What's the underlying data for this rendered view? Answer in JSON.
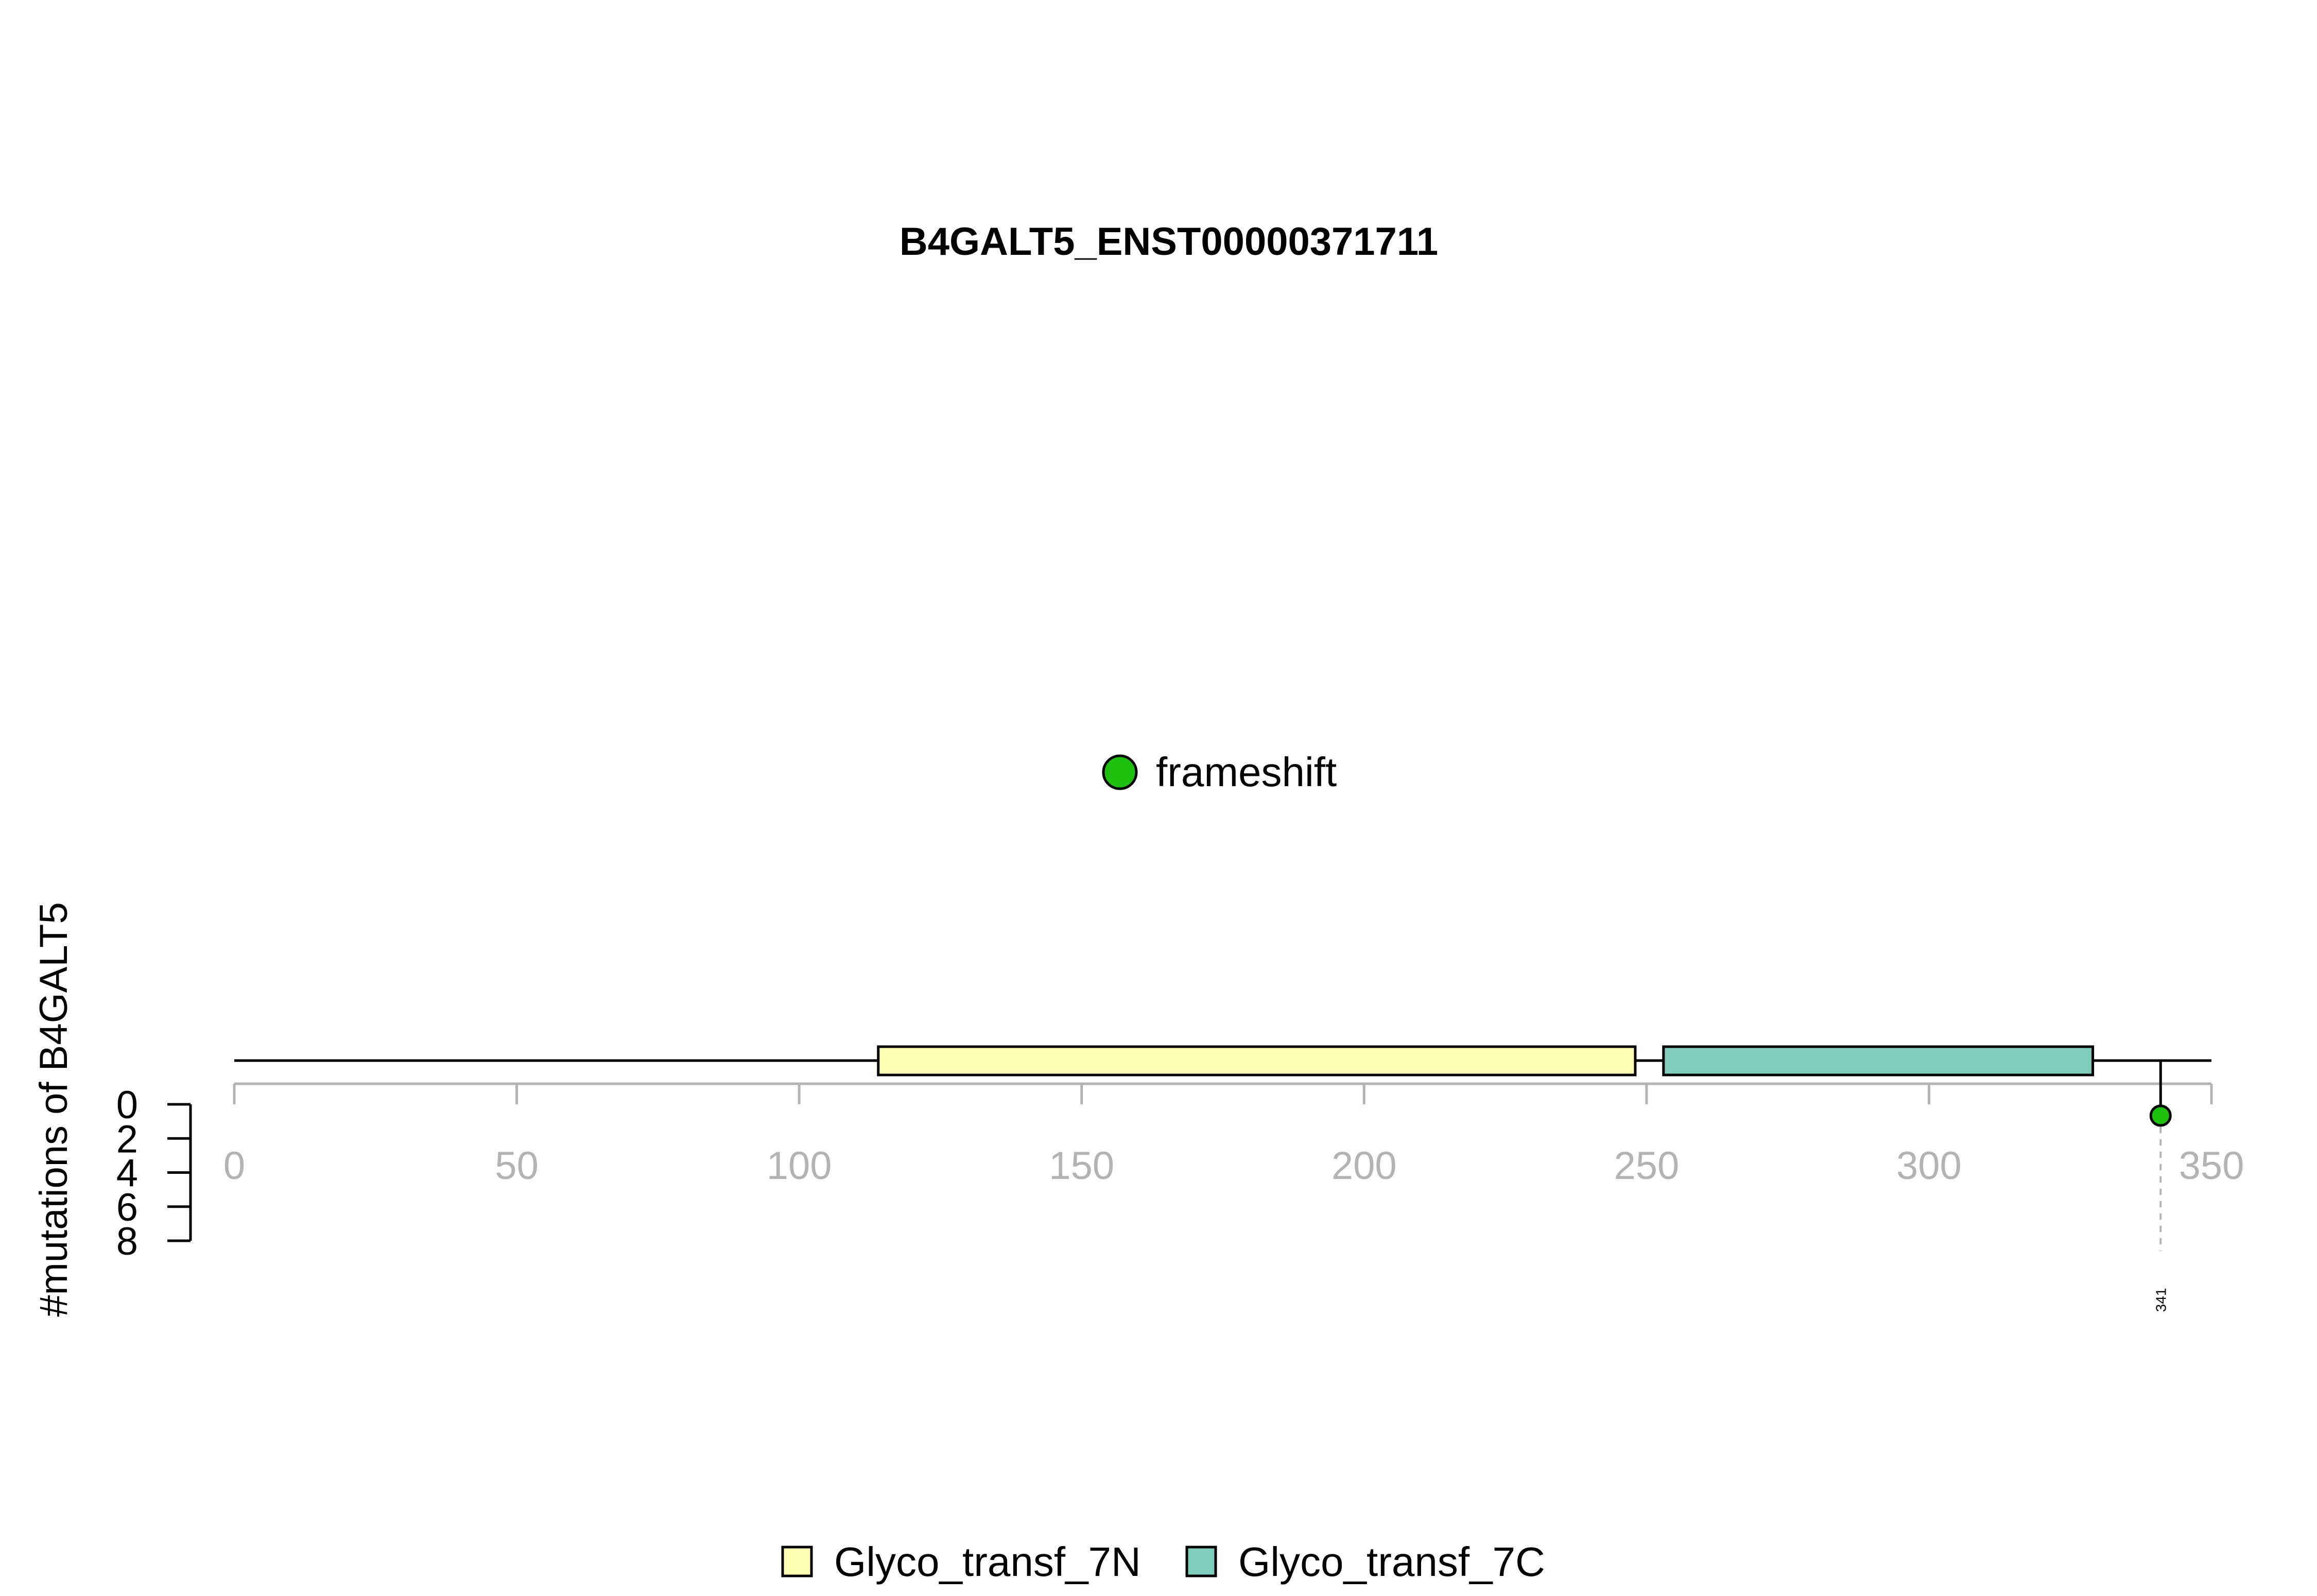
{
  "chart_data": {
    "type": "lollipop",
    "title": "B4GALT5_ENST00000371711",
    "xlabel": "",
    "ylabel": "#mutations of B4GALT5",
    "xlim": [
      0,
      350
    ],
    "x_ticks": [
      0,
      50,
      100,
      150,
      200,
      250,
      300,
      350
    ],
    "ylim": [
      0,
      8
    ],
    "y_ticks": [
      0,
      2,
      4,
      6,
      8
    ],
    "protein_length": 350,
    "domains": [
      {
        "name": "Glyco_transf_7N",
        "start": 114,
        "end": 248,
        "color": "#ffffb3"
      },
      {
        "name": "Glyco_transf_7C",
        "start": 253,
        "end": 329,
        "color": "#80cbba"
      }
    ],
    "mutations": [
      {
        "position": 341,
        "count": 1,
        "type": "frameshift",
        "label": "341",
        "color": "#1fbf0f"
      }
    ],
    "mutation_legend": [
      {
        "name": "frameshift",
        "color": "#1fbf0f"
      }
    ],
    "domain_legend": [
      {
        "name": "Glyco_transf_7N",
        "color": "#ffffb3"
      },
      {
        "name": "Glyco_transf_7C",
        "color": "#80cbba"
      }
    ],
    "grid": false
  }
}
